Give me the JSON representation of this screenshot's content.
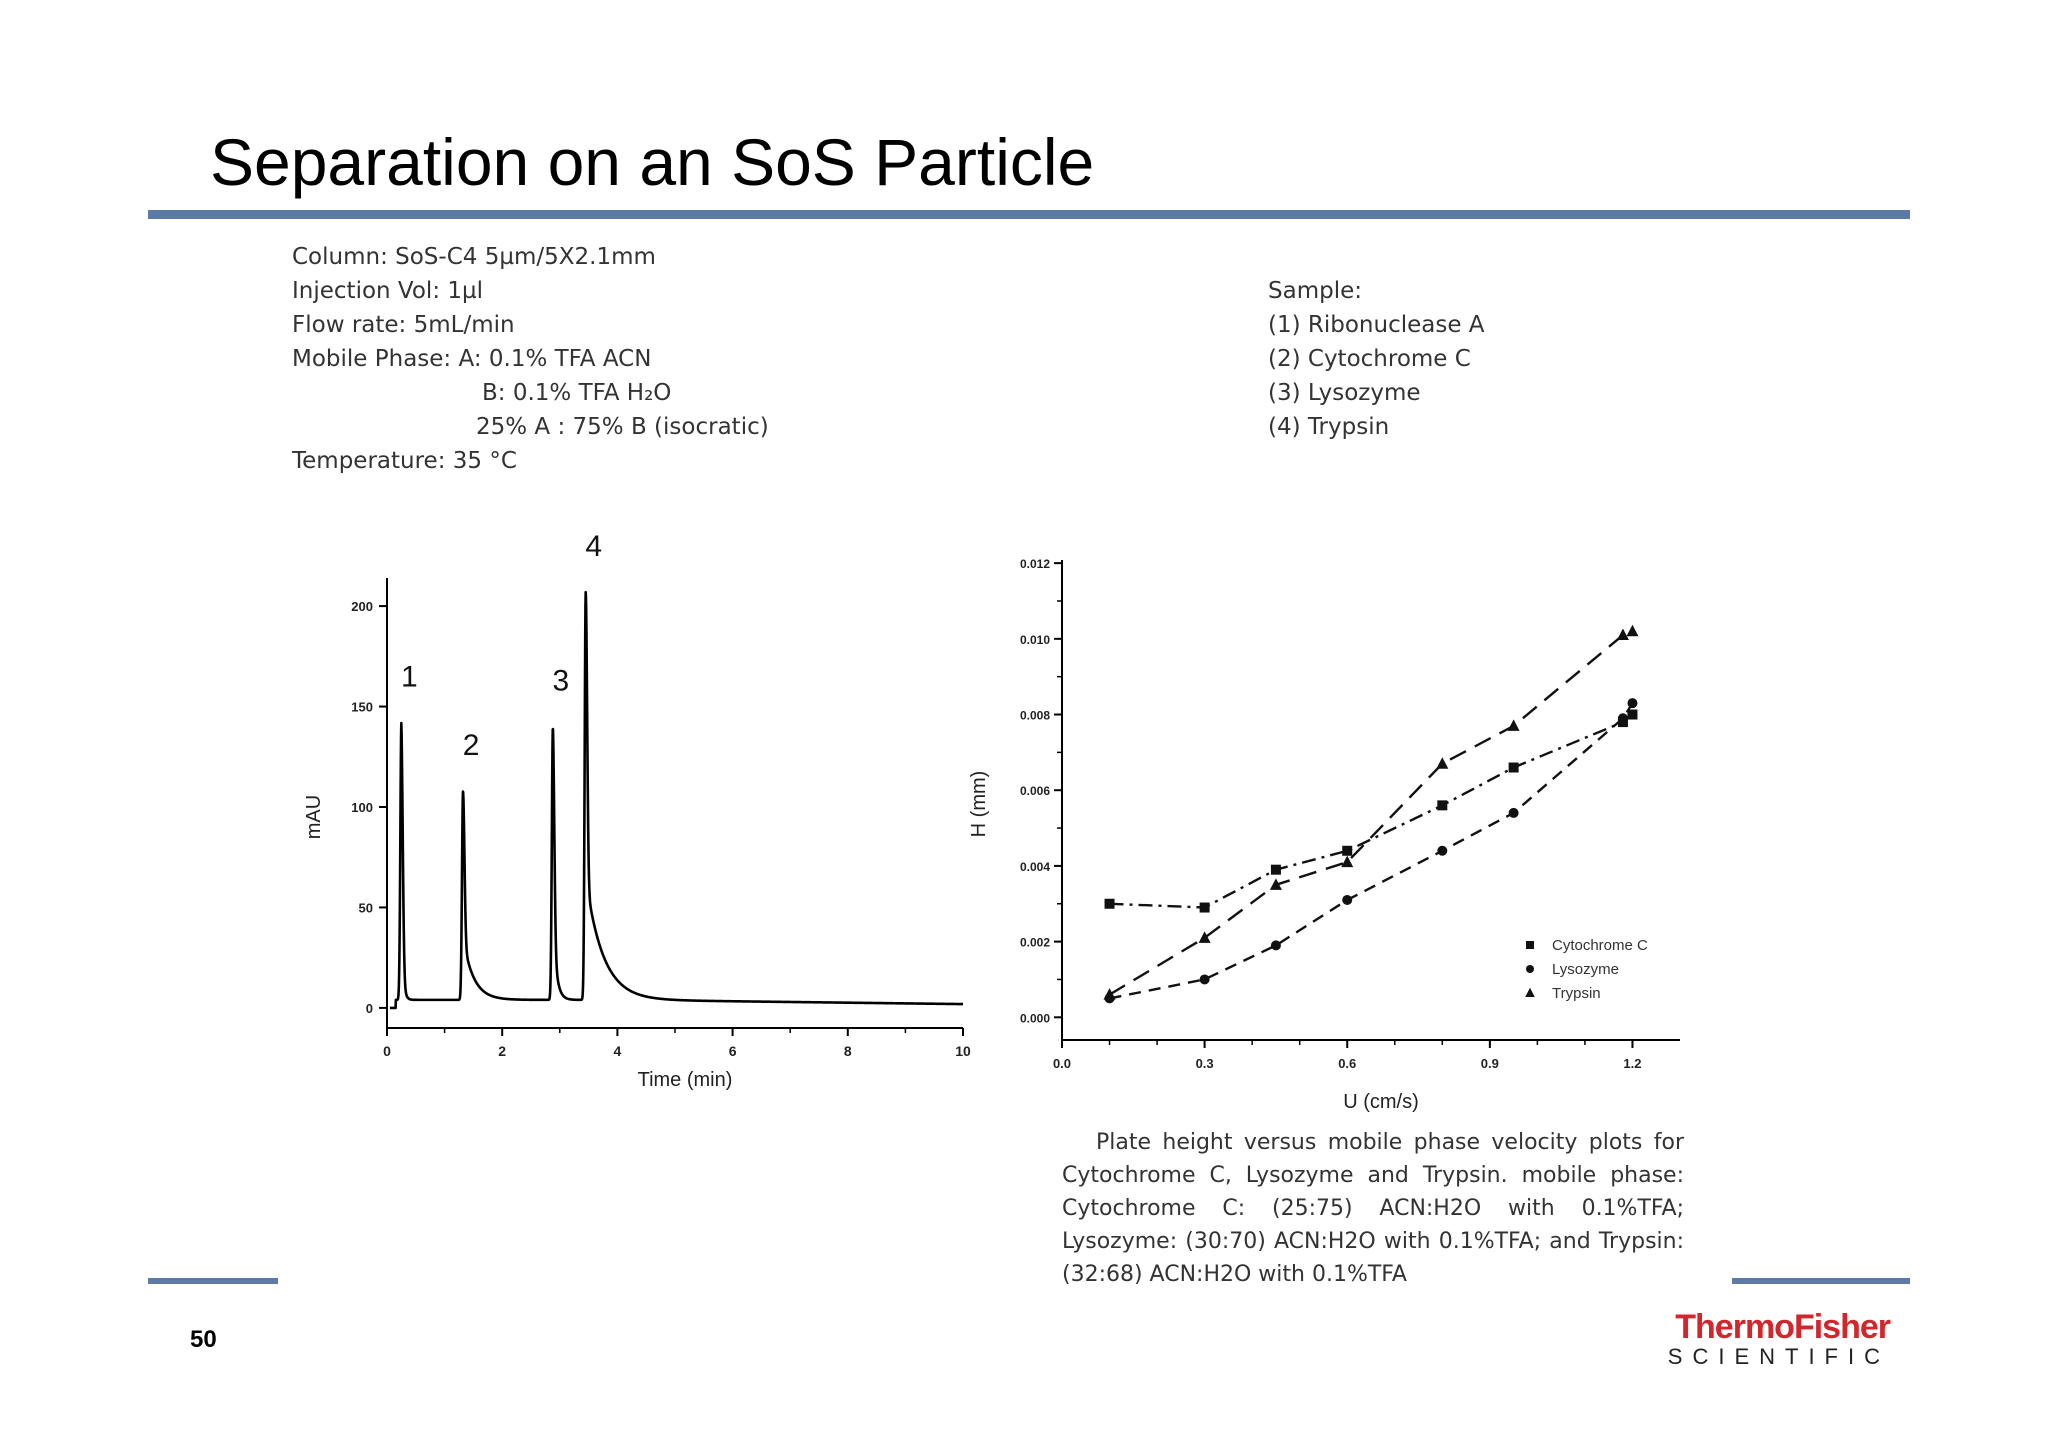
{
  "slide": {
    "title": "Separation on an SoS Particle",
    "page_number": "50",
    "logo_thermo": "Thermo",
    "logo_fisher": "Fisher",
    "logo_scientific": "SCIENTIFIC"
  },
  "conditions": {
    "column": "Column: SoS-C4  5µm/5X2.1mm",
    "injection": "Injection Vol: 1µl",
    "flow": "Flow rate: 5mL/min",
    "mobile_a": "Mobile Phase: A: 0.1% TFA ACN",
    "mobile_b": "B: 0.1% TFA H₂O",
    "ratio": "25% A : 75% B (isocratic)",
    "temperature": "Temperature: 35 °C"
  },
  "sample": {
    "heading": "Sample:",
    "items": [
      "(1)  Ribonuclease A",
      "(2)  Cytochrome C",
      "(3)  Lysozyme",
      "(4)  Trypsin"
    ]
  },
  "caption": "Plate height versus mobile phase velocity plots for Cytochrome C, Lysozyme and Trypsin. mobile phase: Cytochrome C: (25:75) ACN:H2O with 0.1%TFA; Lysozyme: (30:70) ACN:H2O with 0.1%TFA; and Trypsin: (32:68) ACN:H2O with 0.1%TFA",
  "chart_data": [
    {
      "type": "line",
      "xlabel": "Time (min)",
      "ylabel": "mAU",
      "xlim": [
        0,
        10
      ],
      "ylim": [
        -10,
        210
      ],
      "xticks": [
        0,
        2,
        4,
        6,
        8,
        10
      ],
      "yticks": [
        0,
        50,
        100,
        150,
        200
      ],
      "baseline_start": 0,
      "baseline_end": 4,
      "peaks": [
        {
          "label": "1",
          "time": 0.25,
          "height": 138,
          "tail": 0.03
        },
        {
          "label": "2",
          "time": 1.32,
          "height": 104,
          "tail": 0.18
        },
        {
          "label": "3",
          "time": 2.88,
          "height": 136,
          "tail": 0.06
        },
        {
          "label": "4",
          "time": 3.45,
          "height": 203,
          "tail": 0.3
        }
      ]
    },
    {
      "type": "scatter",
      "xlabel": "U (cm/s)",
      "ylabel": "H (mm)",
      "xlim": [
        0.0,
        1.3
      ],
      "ylim": [
        -0.0006,
        0.0124
      ],
      "xticks": [
        0.0,
        0.3,
        0.6,
        0.9,
        1.2
      ],
      "xtick_labels": [
        "0.0",
        "0.3",
        "0.6",
        "0.9",
        "1.2"
      ],
      "yticks": [
        0.0,
        0.002,
        0.004,
        0.006,
        0.008,
        0.01,
        0.012
      ],
      "ytick_labels": [
        "0.000",
        "0.002",
        "0.004",
        "0.006",
        "0.008",
        "0.010",
        "0.012"
      ],
      "legend_position": "bottom-right",
      "series": [
        {
          "name": "Cytochrome C",
          "marker": "square",
          "x": [
            0.1,
            0.3,
            0.45,
            0.6,
            0.8,
            0.95,
            1.18,
            1.2
          ],
          "y": [
            0.003,
            0.0029,
            0.0039,
            0.0044,
            0.0056,
            0.0066,
            0.0078,
            0.008
          ]
        },
        {
          "name": "Lysozyme",
          "marker": "circle",
          "x": [
            0.1,
            0.3,
            0.45,
            0.6,
            0.8,
            0.95,
            1.18,
            1.2
          ],
          "y": [
            0.0005,
            0.001,
            0.0019,
            0.0031,
            0.0044,
            0.0054,
            0.0079,
            0.0083
          ]
        },
        {
          "name": "Trypsin",
          "marker": "triangle",
          "x": [
            0.1,
            0.3,
            0.45,
            0.6,
            0.8,
            0.95,
            1.18,
            1.2
          ],
          "y": [
            0.0006,
            0.0021,
            0.0035,
            0.0041,
            0.0067,
            0.0077,
            0.0101,
            0.0102
          ]
        }
      ]
    }
  ]
}
